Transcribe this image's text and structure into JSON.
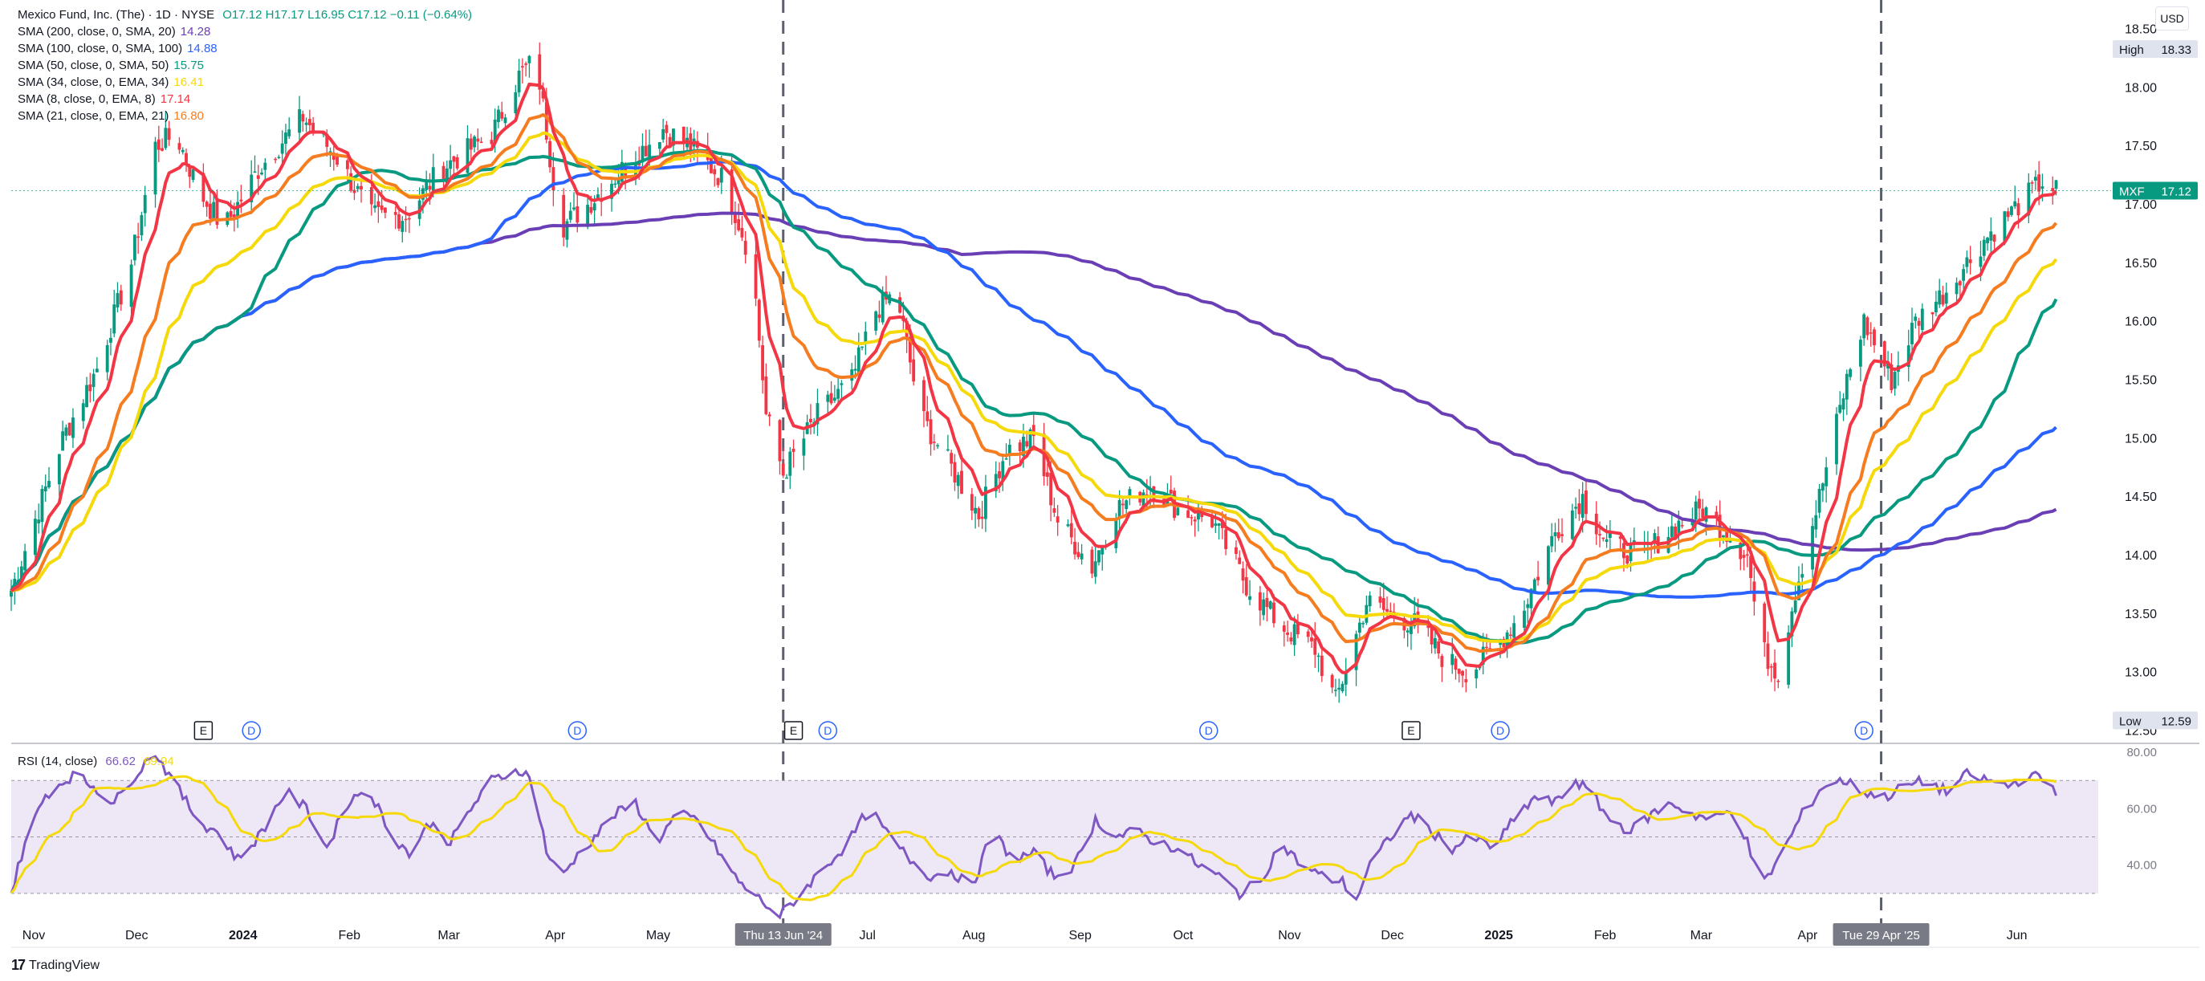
{
  "legend": {
    "title": "Mexico Fund, Inc. (The) · 1D · NYSE",
    "ohlc": "O17.12  H17.17  L16.95  C17.12  −0.11 (−0.64%)",
    "currency": "USD",
    "indicators": [
      {
        "label": "SMA (200, close, 0, SMA, 20)",
        "value": "14.28",
        "color": "#6a3fb5"
      },
      {
        "label": "SMA (100, close, 0, SMA, 100)",
        "value": "14.88",
        "color": "#2962ff"
      },
      {
        "label": "SMA (50, close, 0, SMA, 50)",
        "value": "15.75",
        "color": "#089981"
      },
      {
        "label": "SMA (34, close, 0, EMA, 34)",
        "value": "16.41",
        "color": "#f5d90a"
      },
      {
        "label": "SMA (8, close, 0, EMA, 8)",
        "value": "17.14",
        "color": "#f23645"
      },
      {
        "label": "SMA (21, close, 0, EMA, 21)",
        "value": "16.80",
        "color": "#f57c1f"
      }
    ]
  },
  "rsi": {
    "label": "RSI (14, close)",
    "value": "66.62",
    "value_color": "#7e57c2",
    "ma_value": "69.94",
    "ma_color": "#f5d90a"
  },
  "brand": {
    "name": "TradingView"
  },
  "chart_data": {
    "type": "candlestick",
    "symbol": "MXF",
    "last_price": "17.12",
    "high_label": "High",
    "high_value": "18.33",
    "low_label": "Low",
    "low_value": "12.59",
    "y_ticks": [
      "18.50",
      "18.00",
      "17.50",
      "17.00",
      "16.50",
      "16.00",
      "15.50",
      "15.00",
      "14.50",
      "14.00",
      "13.50",
      "13.00",
      "12.50"
    ],
    "ylim": [
      12.4,
      18.75
    ],
    "x_labels": [
      "Nov",
      "Dec",
      "2024",
      "Feb",
      "Mar",
      "Apr",
      "May",
      "Jul",
      "Aug",
      "Sep",
      "Oct",
      "Nov",
      "Dec",
      "2025",
      "Feb",
      "Mar",
      "Apr",
      "Jun"
    ],
    "x_label_positions_days": [
      0,
      30,
      61,
      92,
      121,
      152,
      182,
      243,
      274,
      305,
      335,
      366,
      396,
      427,
      458,
      486,
      517,
      578
    ],
    "start_date": "2023-11-01",
    "crosshair_labels": [
      {
        "text": "Thu 13 Jun '24",
        "day": 225
      },
      {
        "text": "Tue 29 Apr '25",
        "day": 545
      }
    ],
    "price_path": [
      [
        0,
        13.7
      ],
      [
        8,
        14.4
      ],
      [
        15,
        15.0
      ],
      [
        25,
        15.6
      ],
      [
        35,
        16.5
      ],
      [
        42,
        17.5
      ],
      [
        48,
        17.6
      ],
      [
        55,
        17.1
      ],
      [
        62,
        16.8
      ],
      [
        72,
        17.3
      ],
      [
        85,
        17.75
      ],
      [
        95,
        17.4
      ],
      [
        105,
        16.9
      ],
      [
        115,
        16.9
      ],
      [
        125,
        17.3
      ],
      [
        140,
        17.6
      ],
      [
        148,
        18.1
      ],
      [
        153,
        18.25
      ],
      [
        160,
        16.8
      ],
      [
        168,
        17.0
      ],
      [
        178,
        17.3
      ],
      [
        190,
        17.65
      ],
      [
        198,
        17.5
      ],
      [
        208,
        17.2
      ],
      [
        216,
        16.5
      ],
      [
        220,
        15.2
      ],
      [
        225,
        14.7
      ],
      [
        235,
        15.2
      ],
      [
        245,
        15.5
      ],
      [
        252,
        16.1
      ],
      [
        258,
        16.25
      ],
      [
        265,
        15.2
      ],
      [
        275,
        14.7
      ],
      [
        282,
        14.35
      ],
      [
        290,
        14.9
      ],
      [
        298,
        15.0
      ],
      [
        305,
        14.3
      ],
      [
        315,
        13.9
      ],
      [
        322,
        14.4
      ],
      [
        332,
        14.6
      ],
      [
        340,
        14.4
      ],
      [
        350,
        14.3
      ],
      [
        360,
        13.75
      ],
      [
        370,
        13.4
      ],
      [
        380,
        13.2
      ],
      [
        386,
        12.75
      ],
      [
        395,
        13.6
      ],
      [
        402,
        13.5
      ],
      [
        410,
        13.4
      ],
      [
        418,
        13.1
      ],
      [
        425,
        13.0
      ],
      [
        432,
        13.2
      ],
      [
        440,
        13.5
      ],
      [
        450,
        14.2
      ],
      [
        458,
        14.5
      ],
      [
        465,
        14.1
      ],
      [
        475,
        14.0
      ],
      [
        485,
        14.25
      ],
      [
        493,
        14.4
      ],
      [
        500,
        14.2
      ],
      [
        506,
        14.0
      ],
      [
        510,
        13.2
      ],
      [
        515,
        13.0
      ],
      [
        520,
        13.7
      ],
      [
        527,
        14.5
      ],
      [
        535,
        15.5
      ],
      [
        540,
        16.0
      ],
      [
        548,
        15.5
      ],
      [
        555,
        16.0
      ],
      [
        565,
        16.3
      ],
      [
        575,
        16.7
      ],
      [
        585,
        17.0
      ],
      [
        592,
        17.2
      ],
      [
        596,
        17.12
      ]
    ],
    "rsi_path": [
      [
        0,
        30
      ],
      [
        4,
        48
      ],
      [
        10,
        65
      ],
      [
        18,
        72
      ],
      [
        24,
        68
      ],
      [
        30,
        62
      ],
      [
        36,
        72
      ],
      [
        42,
        80
      ],
      [
        48,
        68
      ],
      [
        55,
        55
      ],
      [
        60,
        52
      ],
      [
        66,
        42
      ],
      [
        72,
        50
      ],
      [
        80,
        66
      ],
      [
        86,
        60
      ],
      [
        92,
        46
      ],
      [
        98,
        62
      ],
      [
        104,
        68
      ],
      [
        110,
        52
      ],
      [
        116,
        44
      ],
      [
        122,
        55
      ],
      [
        128,
        48
      ],
      [
        134,
        60
      ],
      [
        140,
        70
      ],
      [
        148,
        74
      ],
      [
        152,
        70
      ],
      [
        156,
        45
      ],
      [
        160,
        35
      ],
      [
        164,
        42
      ],
      [
        170,
        50
      ],
      [
        176,
        58
      ],
      [
        182,
        62
      ],
      [
        188,
        48
      ],
      [
        194,
        58
      ],
      [
        200,
        56
      ],
      [
        206,
        45
      ],
      [
        212,
        34
      ],
      [
        218,
        28
      ],
      [
        224,
        22
      ],
      [
        230,
        30
      ],
      [
        236,
        38
      ],
      [
        244,
        48
      ],
      [
        250,
        60
      ],
      [
        256,
        50
      ],
      [
        262,
        42
      ],
      [
        268,
        36
      ],
      [
        274,
        38
      ],
      [
        280,
        32
      ],
      [
        286,
        52
      ],
      [
        292,
        42
      ],
      [
        298,
        44
      ],
      [
        304,
        36
      ],
      [
        310,
        40
      ],
      [
        316,
        56
      ],
      [
        322,
        50
      ],
      [
        328,
        52
      ],
      [
        334,
        48
      ],
      [
        340,
        46
      ],
      [
        346,
        40
      ],
      [
        352,
        36
      ],
      [
        358,
        30
      ],
      [
        364,
        34
      ],
      [
        370,
        48
      ],
      [
        376,
        40
      ],
      [
        382,
        36
      ],
      [
        388,
        34
      ],
      [
        392,
        28
      ],
      [
        396,
        40
      ],
      [
        402,
        50
      ],
      [
        408,
        58
      ],
      [
        414,
        52
      ],
      [
        420,
        46
      ],
      [
        426,
        50
      ],
      [
        432,
        46
      ],
      [
        438,
        56
      ],
      [
        444,
        64
      ],
      [
        450,
        62
      ],
      [
        456,
        70
      ],
      [
        460,
        66
      ],
      [
        466,
        56
      ],
      [
        472,
        52
      ],
      [
        478,
        58
      ],
      [
        484,
        62
      ],
      [
        490,
        58
      ],
      [
        496,
        56
      ],
      [
        502,
        60
      ],
      [
        506,
        48
      ],
      [
        510,
        32
      ],
      [
        516,
        44
      ],
      [
        522,
        58
      ],
      [
        528,
        68
      ],
      [
        534,
        70
      ],
      [
        540,
        66
      ],
      [
        546,
        64
      ],
      [
        552,
        68
      ],
      [
        558,
        70
      ],
      [
        564,
        66
      ],
      [
        570,
        72
      ],
      [
        576,
        70
      ],
      [
        582,
        68
      ],
      [
        588,
        72
      ],
      [
        593,
        70
      ],
      [
        596,
        66.62
      ]
    ],
    "rsi_ylim": [
      20,
      82
    ],
    "rsi_ticks": [
      "80.00",
      "60.00",
      "40.00"
    ],
    "rsi_bands": [
      70,
      50,
      30
    ],
    "ma_periods": {
      "red": 8,
      "orange": 21,
      "yellow": 34,
      "green": 50,
      "blue": 100,
      "purple": 200
    },
    "event_markers": [
      {
        "type": "E",
        "day": 56
      },
      {
        "type": "D",
        "day": 70
      },
      {
        "type": "D",
        "day": 165
      },
      {
        "type": "E",
        "day": 228
      },
      {
        "type": "D",
        "day": 238
      },
      {
        "type": "D",
        "day": 349
      },
      {
        "type": "E",
        "day": 408
      },
      {
        "type": "D",
        "day": 434
      },
      {
        "type": "D",
        "day": 540
      }
    ],
    "colors": {
      "up": "#089981",
      "down": "#f23645",
      "sma200": "#6a3fb5",
      "sma100": "#2962ff",
      "sma50": "#089981",
      "ema34": "#f5d90a",
      "ema21": "#f57c1f",
      "ema8": "#f23645",
      "rsi": "#7e57c2",
      "rsi_ma": "#f5d90a",
      "rsi_band": "#ede7f6"
    }
  }
}
